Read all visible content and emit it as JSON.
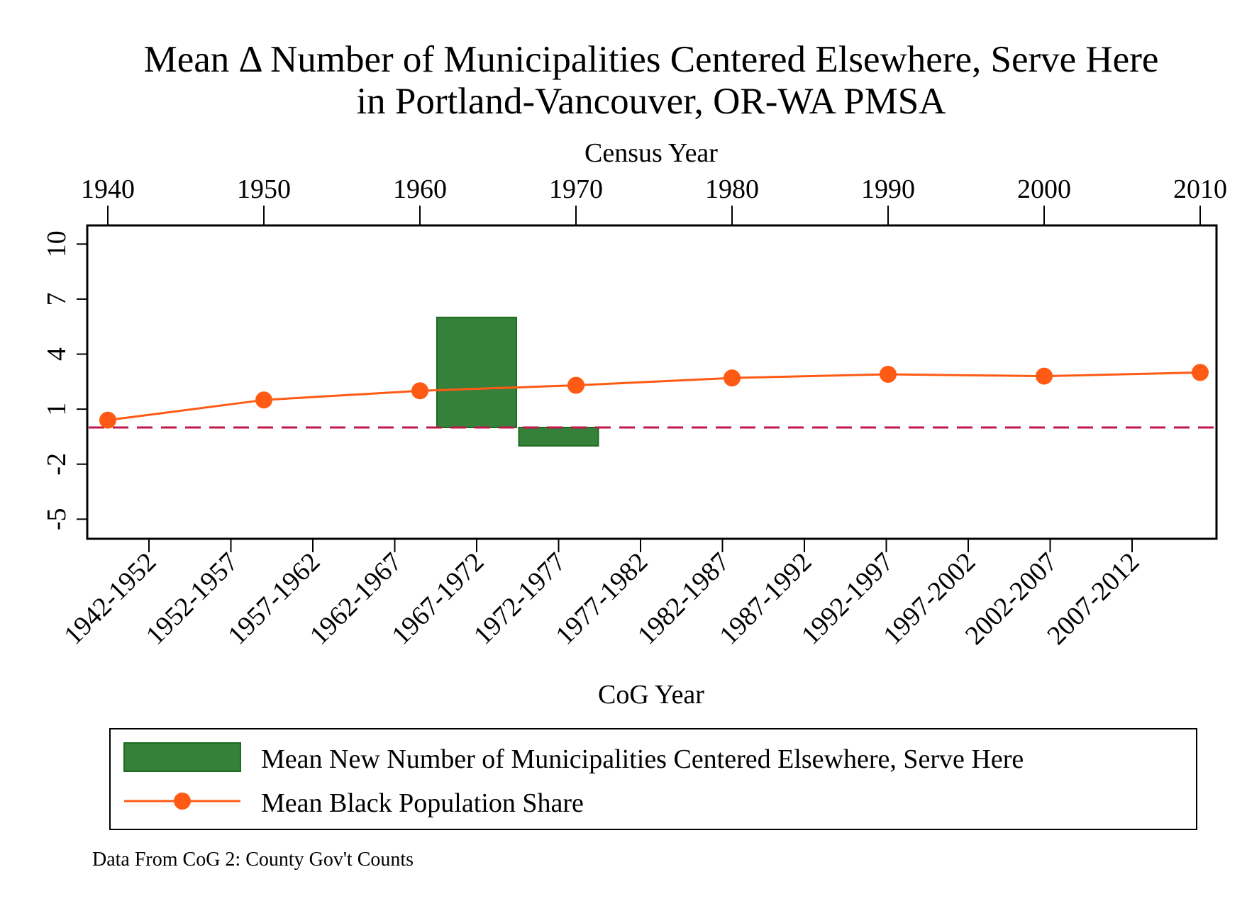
{
  "chart_data": {
    "type": "bar+line",
    "title_line1": "Mean Δ Number of Municipalities Centered Elsewhere, Serve Here",
    "title_line2": "in Portland-Vancouver, OR-WA PMSA",
    "top_axis_label": "Census Year",
    "top_ticks": [
      "1940",
      "1950",
      "1960",
      "1970",
      "1980",
      "1990",
      "2000",
      "2010"
    ],
    "xlabel": "CoG Year",
    "bottom_ticks": [
      "1942-1952",
      "1952-1957",
      "1957-1962",
      "1962-1967",
      "1967-1972",
      "1972-1977",
      "1977-1982",
      "1982-1987",
      "1987-1992",
      "1992-1997",
      "1997-2002",
      "2002-2007",
      "2007-2012"
    ],
    "y_ticks": [
      "10",
      "7",
      "4",
      "1",
      "-2",
      "-5"
    ],
    "ylim": [
      -6,
      11
    ],
    "reference_line": 0,
    "series": [
      {
        "name": "Mean New Number of Municipalities Centered Elsewhere, Serve Here",
        "kind": "bar",
        "color": "#35803A",
        "edge_color": "#1E6B1E",
        "categories": [
          "1967-1972",
          "1972-1977"
        ],
        "values": [
          6,
          -1
        ]
      },
      {
        "name": "Mean Black Population Share",
        "kind": "line",
        "color": "#FF5A14",
        "x": [
          1940,
          1950,
          1960,
          1970,
          1980,
          1990,
          2000,
          2010
        ],
        "values": [
          0.4,
          1.5,
          2.0,
          2.3,
          2.7,
          2.9,
          2.8,
          3.0
        ]
      }
    ],
    "reference_color": "#C0184A",
    "note": "Data From CoG 2: County Gov't Counts"
  }
}
